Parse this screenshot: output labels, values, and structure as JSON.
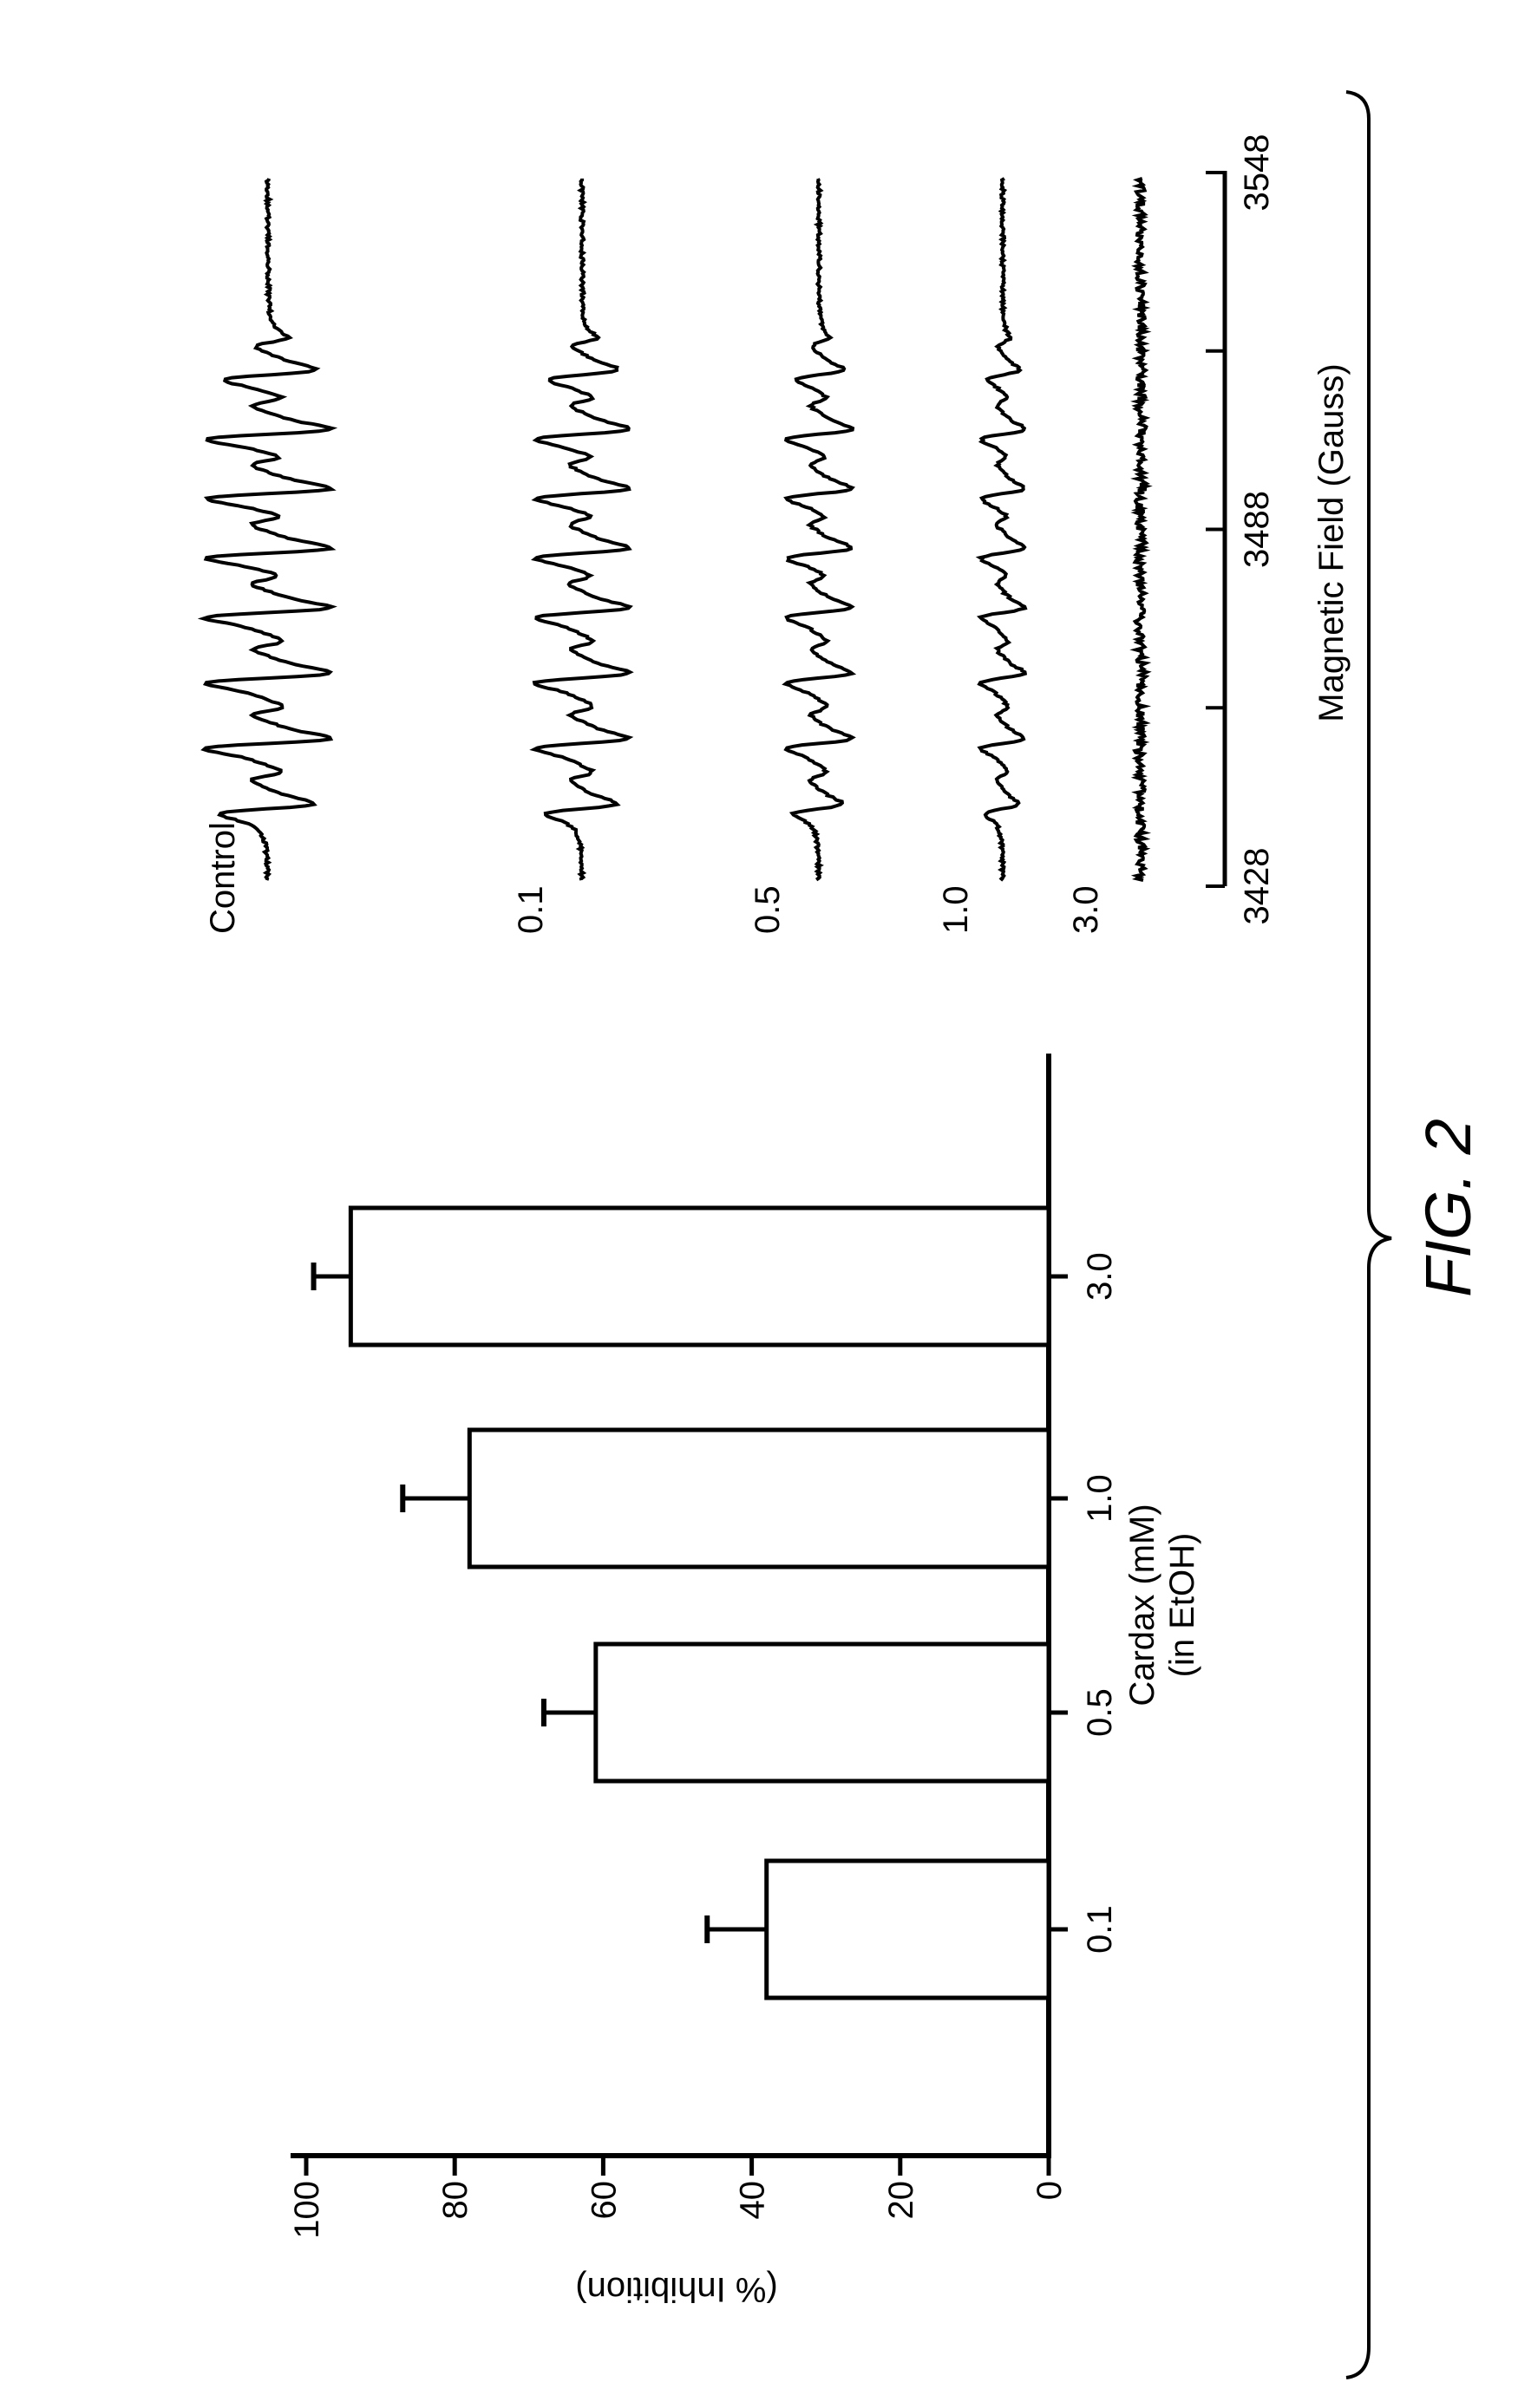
{
  "figure_label": "FIG. 2",
  "chart_data": [
    {
      "type": "bar",
      "title": "",
      "xlabel": "Cardax (mM)",
      "xlabel_line2": "(in EtOH)",
      "ylabel": "(% Inhibition)",
      "categories": [
        "0.1",
        "0.5",
        "1.0",
        "3.0"
      ],
      "values": [
        38,
        61,
        78,
        94
      ],
      "error_upper": [
        46,
        68,
        87,
        99
      ],
      "ylim": [
        0,
        100
      ],
      "yticks": [
        "0",
        "20",
        "40",
        "60",
        "80",
        "100"
      ],
      "grid": false,
      "colors": {
        "bar_fill": "#ffffff",
        "stroke": "#000000"
      }
    },
    {
      "type": "line",
      "title": "",
      "xlabel": "Magnetic Field (Gauss)",
      "xlim": [
        3428,
        3548
      ],
      "xticks": [
        3428,
        3458,
        3488,
        3518,
        3548
      ],
      "xtick_labels": [
        "3428",
        "3488",
        "3548"
      ],
      "line_positions_gauss": [
        3441,
        3452,
        3463,
        3474,
        3484,
        3494,
        3504,
        3514
      ],
      "series": [
        {
          "name": "Control",
          "relative_amplitude": 1.0
        },
        {
          "name": "0.1",
          "relative_amplitude": 0.75
        },
        {
          "name": "0.5",
          "relative_amplitude": 0.52
        },
        {
          "name": "1.0",
          "relative_amplitude": 0.35
        },
        {
          "name": "3.0",
          "relative_amplitude": 0.03
        }
      ],
      "grid": false
    }
  ]
}
